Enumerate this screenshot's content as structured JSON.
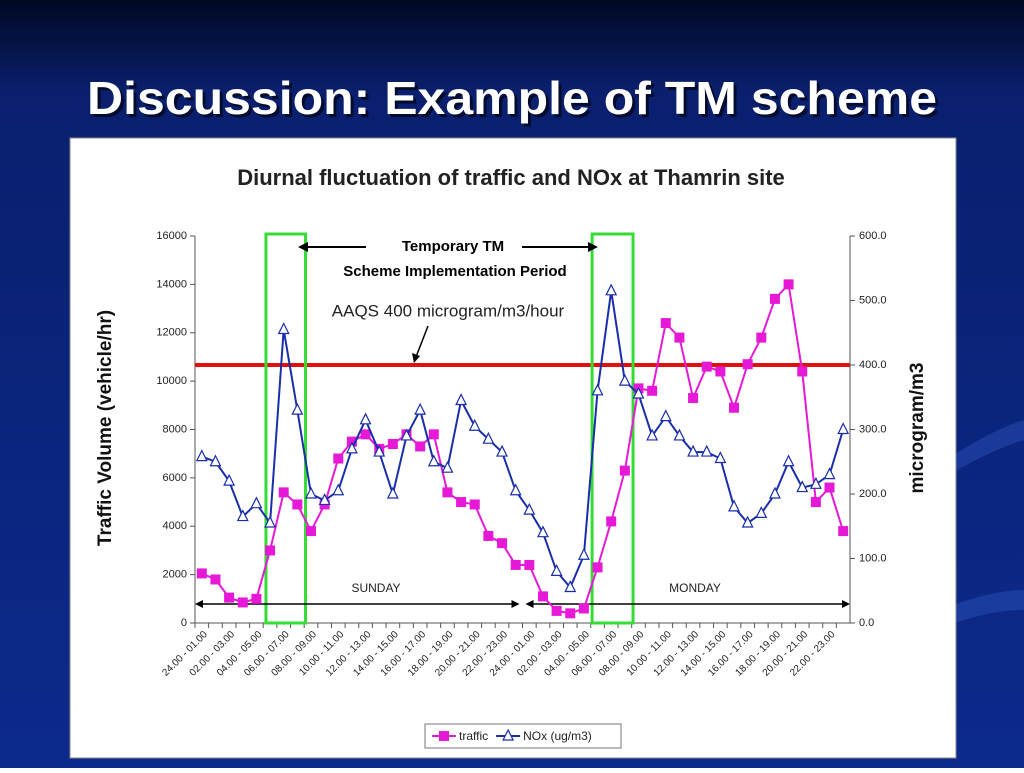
{
  "slide": {
    "title": "Discussion: Example of TM scheme"
  },
  "chart_data": {
    "type": "line",
    "title": "Diurnal fluctuation of traffic and NOx at Thamrin site",
    "y_label": "Traffic Volume (vehicle/hr)",
    "y2_label": "microgram/m3",
    "categories": [
      "24.00 - 01.00",
      null,
      "02.00 - 03.00",
      null,
      "04.00 - 05.00",
      null,
      "06.00 - 07.00",
      null,
      "08.00 - 09.00",
      null,
      "10.00 - 11.00",
      null,
      "12.00 - 13.00",
      null,
      "14.00 - 15.00",
      null,
      "16.00 - 17.00",
      null,
      "18.00 - 19.00",
      null,
      "20.00 - 21.00",
      null,
      "22.00 - 23.00",
      null,
      "24.00 - 01.00",
      null,
      "02.00 - 03.00",
      null,
      "04.00 - 05.00",
      null,
      "06.00 - 07.00",
      null,
      "08.00 - 09.00",
      null,
      "10.00 - 11.00",
      null,
      "12.00 - 13.00",
      null,
      "14.00 - 15.00",
      null,
      "16.00 - 17.00",
      null,
      "18.00 - 19.00",
      null,
      "20.00 - 21.00",
      null,
      "22.00 - 23.00",
      null
    ],
    "series": [
      {
        "name": "traffic",
        "color": "#e619d6",
        "marker": "square",
        "values": [
          2050,
          1800,
          1050,
          850,
          1000,
          3000,
          5400,
          4900,
          3800,
          4900,
          6800,
          7500,
          7800,
          7200,
          7400,
          7800,
          7300,
          7800,
          5400,
          5000,
          4900,
          3600,
          3300,
          2400,
          2400,
          1100,
          500,
          400,
          600,
          2300,
          4200,
          6300,
          9700,
          9600,
          12400,
          11800,
          9300,
          10600,
          10400,
          8900,
          10700,
          11800,
          13400,
          14000,
          10400,
          5000,
          5600,
          3800
        ]
      },
      {
        "name": "NOx (ug/m3)",
        "color": "#1a2ea8",
        "marker": "triangle",
        "axis": "y2",
        "values": [
          258,
          250,
          220,
          165,
          185,
          155,
          455,
          330,
          200,
          190,
          205,
          270,
          315,
          265,
          200,
          290,
          330,
          250,
          240,
          345,
          305,
          285,
          265,
          205,
          175,
          140,
          80,
          55,
          105,
          360,
          515,
          375,
          355,
          290,
          320,
          290,
          265,
          265,
          255,
          180,
          155,
          170,
          200,
          250,
          210,
          215,
          230,
          300
        ]
      }
    ],
    "ylim": [
      0,
      16000
    ],
    "yticks": [
      0,
      2000,
      4000,
      6000,
      8000,
      10000,
      12000,
      14000,
      16000
    ],
    "y2lim": [
      0,
      600
    ],
    "y2ticks": [
      {
        "value": 0,
        "label": "0.0"
      },
      {
        "value": 100,
        "label": "100.0"
      },
      {
        "value": 200,
        "label": "200.0"
      },
      {
        "value": 300,
        "label": "300.0"
      },
      {
        "value": 400,
        "label": "400.0"
      },
      {
        "value": 500,
        "label": "500.0"
      },
      {
        "value": 600,
        "label": "600.0"
      }
    ],
    "threshold": {
      "value": 400,
      "axis": "y2",
      "color": "#e01010",
      "label": "AAQS 400 microgram/m3/hour"
    },
    "annotations": [
      "Temporary TM",
      "Scheme Implementation Period"
    ],
    "day_labels": [
      "SUNDAY",
      "MONDAY"
    ],
    "legend": "bottom"
  }
}
